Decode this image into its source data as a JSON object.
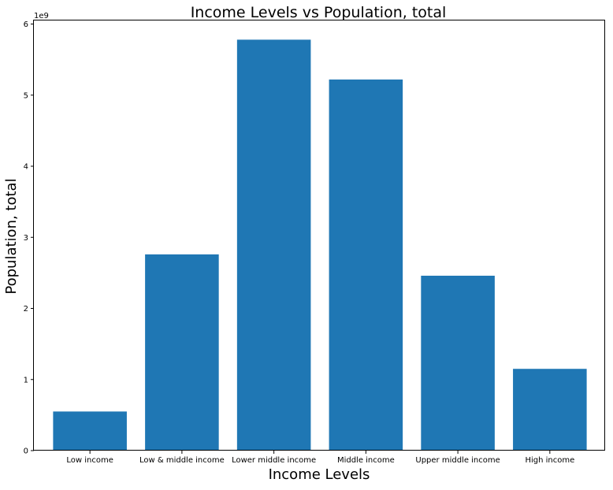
{
  "chart_data": {
    "type": "bar",
    "title": "Income Levels vs Population, total",
    "xlabel": "Income Levels",
    "ylabel": "Population, total",
    "y_offset_label": "1e9",
    "categories": [
      "Low income",
      "Low & middle income",
      "Lower middle income",
      "Middle income",
      "Upper middle income",
      "High income"
    ],
    "values": [
      550000000.0,
      2760000000.0,
      5780000000.0,
      5220000000.0,
      2460000000.0,
      1150000000.0
    ],
    "ylim": [
      0,
      6050000000.0
    ],
    "yticks": [
      0,
      1,
      2,
      3,
      4,
      5,
      6
    ],
    "bar_color": "#1f77b4",
    "grid": false,
    "legend": "none"
  }
}
